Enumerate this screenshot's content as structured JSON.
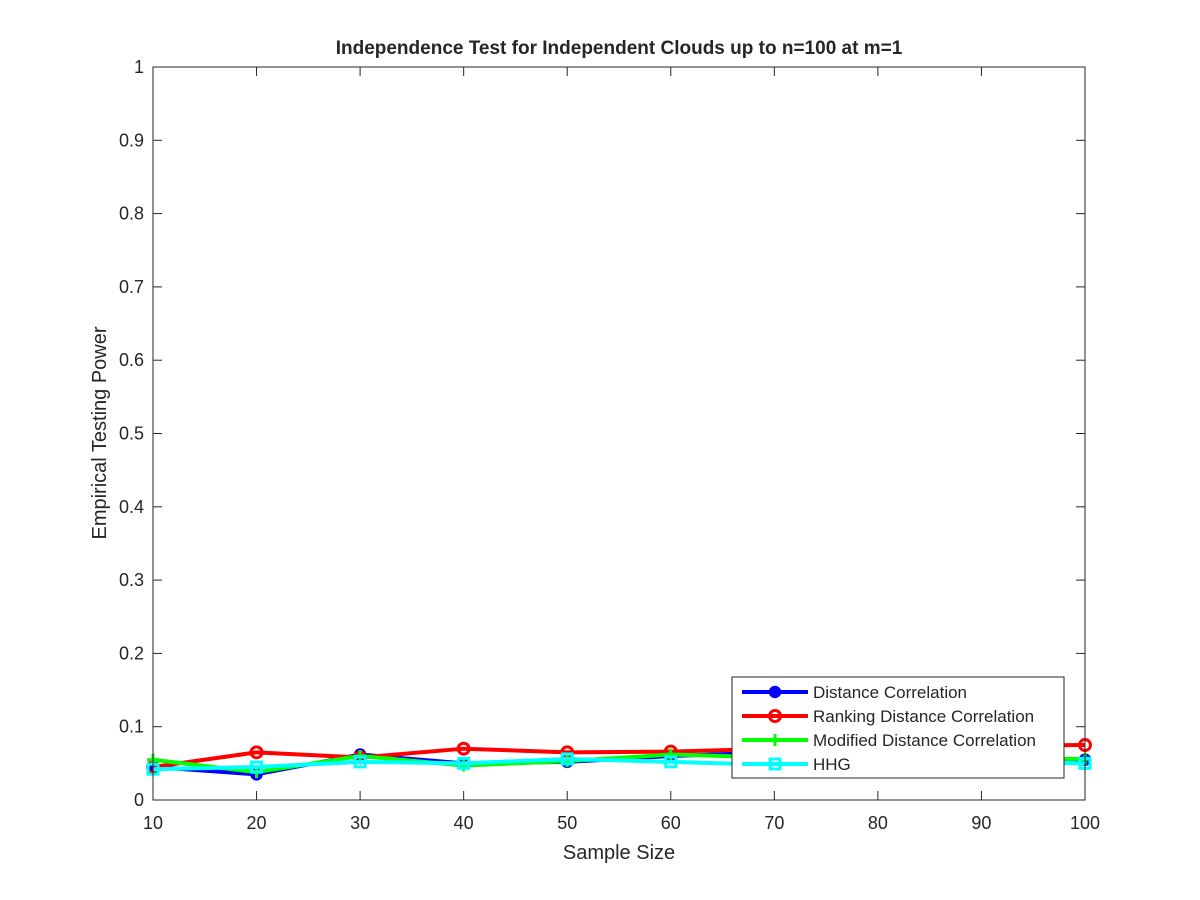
{
  "chart_data": {
    "type": "line",
    "title": "Independence Test for Independent Clouds up to n=100 at m=1",
    "xlabel": "Sample Size",
    "ylabel": "Empirical Testing Power",
    "xlim": [
      10,
      100
    ],
    "ylim": [
      0,
      1
    ],
    "xticks": [
      "10",
      "20",
      "30",
      "40",
      "50",
      "60",
      "70",
      "80",
      "90",
      "100"
    ],
    "yticks": [
      "0",
      "0.1",
      "0.2",
      "0.3",
      "0.4",
      "0.5",
      "0.6",
      "0.7",
      "0.8",
      "0.9",
      "1"
    ],
    "grid": false,
    "legend_position": "bottom-right",
    "x": [
      10,
      20,
      30,
      40,
      50,
      60,
      70,
      80,
      90,
      100
    ],
    "series": [
      {
        "name": "Distance Correlation",
        "color": "#0000ff",
        "marker": "filled-circle",
        "values": [
          0.045,
          0.035,
          0.062,
          0.05,
          0.052,
          0.06,
          0.065,
          0.06,
          0.058,
          0.055
        ]
      },
      {
        "name": "Ranking Distance Correlation",
        "color": "#ff0000",
        "marker": "open-circle",
        "values": [
          0.045,
          0.065,
          0.058,
          0.07,
          0.065,
          0.066,
          0.07,
          0.072,
          0.074,
          0.075
        ]
      },
      {
        "name": "Modified Distance Correlation",
        "color": "#00ff00",
        "marker": "plus",
        "values": [
          0.055,
          0.038,
          0.06,
          0.047,
          0.053,
          0.062,
          0.058,
          0.056,
          0.057,
          0.056
        ]
      },
      {
        "name": "HHG",
        "color": "#00ffff",
        "marker": "open-square",
        "values": [
          0.042,
          0.045,
          0.052,
          0.05,
          0.056,
          0.052,
          0.048,
          0.05,
          0.052,
          0.05
        ]
      }
    ]
  }
}
